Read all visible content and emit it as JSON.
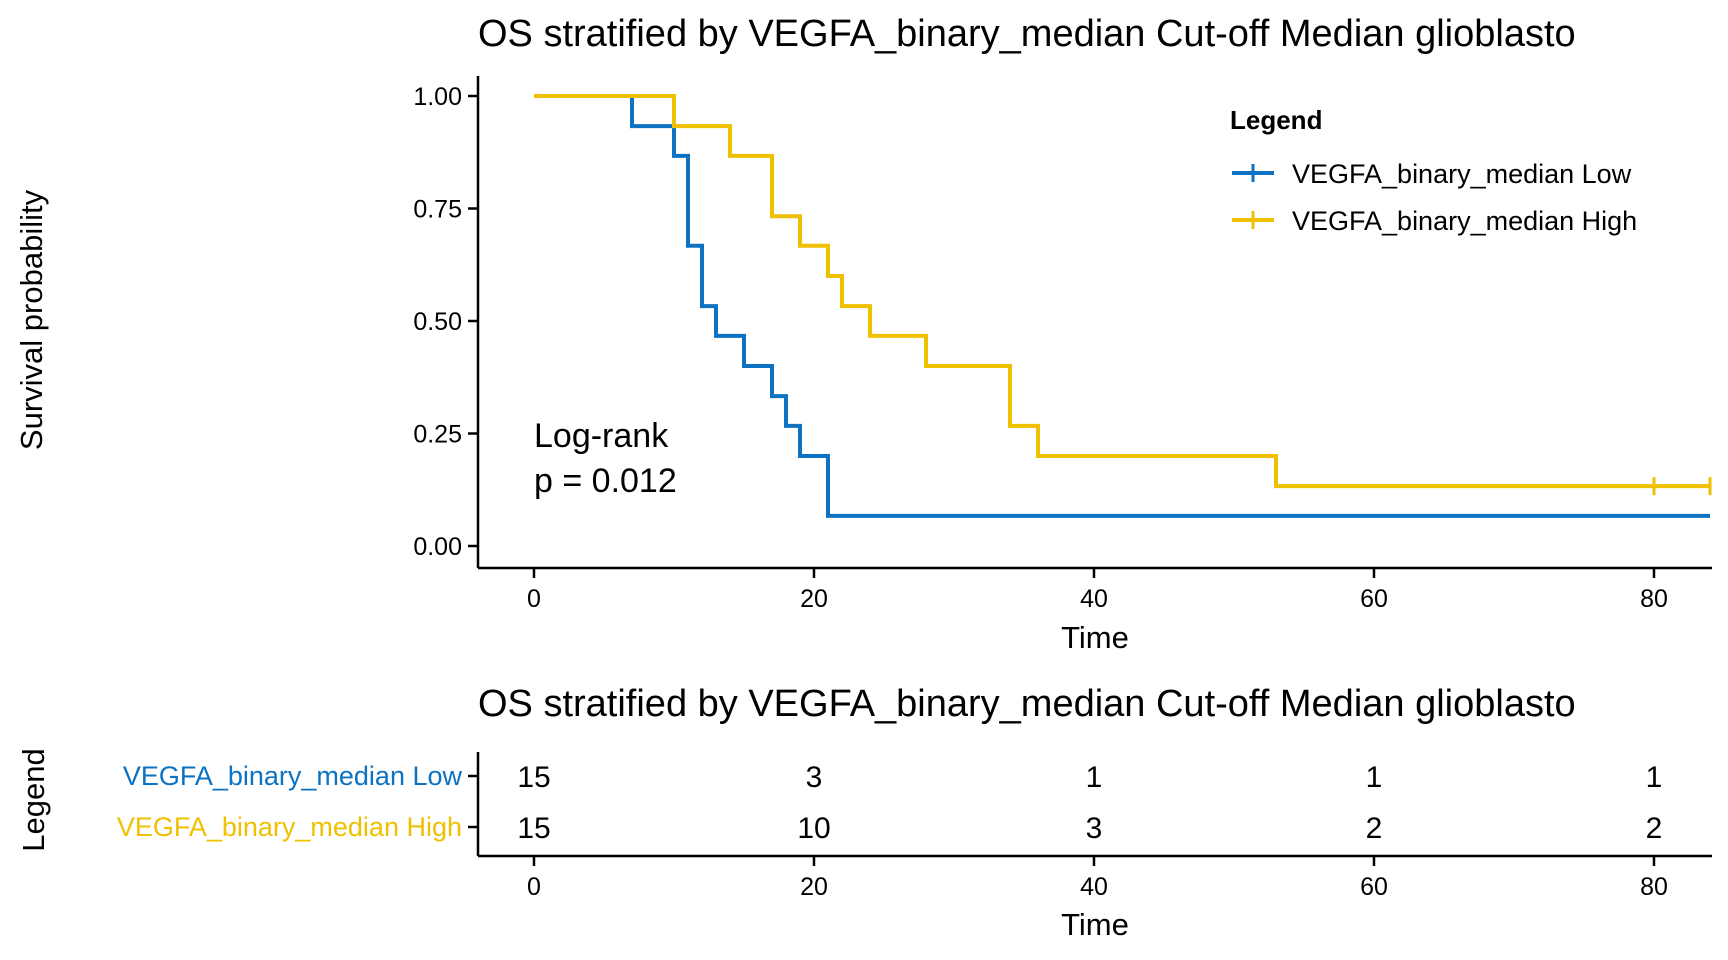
{
  "colors": {
    "low": "#0C72C1",
    "high": "#EFC000",
    "axis": "#000000"
  },
  "chart_data": [
    {
      "type": "line",
      "subtype": "kaplan-meier-step",
      "title": "OS stratified by VEGFA_binary_median Cut-off Median glioblasto",
      "xlabel": "Time",
      "ylabel": "Survival probability",
      "xlim": [
        0,
        84
      ],
      "ylim": [
        0,
        1
      ],
      "xticks": [
        0,
        20,
        40,
        60,
        80
      ],
      "yticks": [
        0,
        0.25,
        0.5,
        0.75,
        1.0
      ],
      "xtick_labels": [
        "0",
        "20",
        "40",
        "60",
        "80"
      ],
      "ytick_labels": [
        "0.00",
        "0.25",
        "0.50",
        "0.75",
        "1.00"
      ],
      "legend": {
        "title": "Legend",
        "position": "top-right"
      },
      "annotation": {
        "line1": "Log-rank",
        "line2": "p = 0.012"
      },
      "series": [
        {
          "name": "VEGFA_binary_median Low",
          "color_key": "low",
          "steps": [
            [
              0,
              1.0
            ],
            [
              7,
              0.933
            ],
            [
              10,
              0.867
            ],
            [
              11,
              0.667
            ],
            [
              12,
              0.533
            ],
            [
              13,
              0.467
            ],
            [
              15,
              0.4
            ],
            [
              17,
              0.333
            ],
            [
              18,
              0.267
            ],
            [
              19,
              0.2
            ],
            [
              21,
              0.067
            ],
            [
              84,
              0.067
            ]
          ],
          "censored": []
        },
        {
          "name": "VEGFA_binary_median High",
          "color_key": "high",
          "steps": [
            [
              0,
              1.0
            ],
            [
              10,
              0.933
            ],
            [
              14,
              0.867
            ],
            [
              17,
              0.733
            ],
            [
              19,
              0.667
            ],
            [
              21,
              0.6
            ],
            [
              22,
              0.533
            ],
            [
              24,
              0.467
            ],
            [
              28,
              0.4
            ],
            [
              34,
              0.267
            ],
            [
              36,
              0.2
            ],
            [
              53,
              0.133
            ],
            [
              84,
              0.133
            ]
          ],
          "censored": [
            80,
            84
          ]
        }
      ]
    },
    {
      "type": "table",
      "subtype": "risk-table",
      "title": "OS stratified by VEGFA_binary_median Cut-off Median glioblasto",
      "xlabel": "Time",
      "ylabel": "Legend",
      "xlim": [
        0,
        84
      ],
      "xticks": [
        0,
        20,
        40,
        60,
        80
      ],
      "xtick_labels": [
        "0",
        "20",
        "40",
        "60",
        "80"
      ],
      "rows": [
        {
          "name": "VEGFA_binary_median Low",
          "color_key": "low",
          "values": [
            "15",
            "3",
            "1",
            "1",
            "1"
          ]
        },
        {
          "name": "VEGFA_binary_median High",
          "color_key": "high",
          "values": [
            "15",
            "10",
            "3",
            "2",
            "2"
          ]
        }
      ]
    }
  ]
}
